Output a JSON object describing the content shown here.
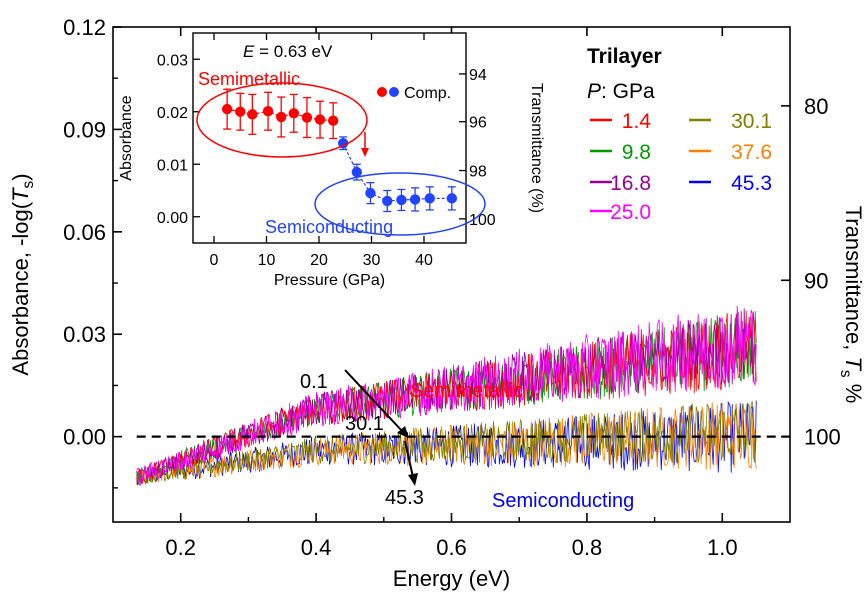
{
  "chart_data": [
    {
      "type": "line",
      "xlabel": "Energy (eV)",
      "ylabel_parts": [
        "Absorbance, -log(",
        "T",
        "s",
        ")"
      ],
      "y2label_parts": [
        "Transmittance, ",
        "T",
        "s",
        " %"
      ],
      "xlim": [
        0.1,
        1.1
      ],
      "ylim": [
        -0.025,
        0.12
      ],
      "xticks": [
        "0.2",
        "0.4",
        "0.6",
        "0.8",
        "1.0"
      ],
      "yticks": [
        "0.00",
        "0.03",
        "0.06",
        "0.09",
        "0.12"
      ],
      "y2ticks": [
        {
          "label": "80",
          "at": 0.0969
        },
        {
          "label": "90",
          "at": 0.0458
        },
        {
          "label": "100",
          "at": 0.0
        }
      ],
      "baseline": 0.0,
      "legend_title": "Trilayer",
      "legend_unit_label": "P: GPa",
      "series": [
        {
          "name": "1.4",
          "color": "#ff0000",
          "start": 0.008,
          "end": 0.026,
          "amp": 0.024
        },
        {
          "name": "9.8",
          "color": "#009900",
          "start": 0.008,
          "end": 0.026,
          "amp": 0.023
        },
        {
          "name": "16.8",
          "color": "#990099",
          "start": 0.008,
          "end": 0.027,
          "amp": 0.024
        },
        {
          "name": "25.0",
          "color": "#ff00ff",
          "start": 0.008,
          "end": 0.028,
          "amp": 0.026
        },
        {
          "name": "30.1",
          "color": "#808000",
          "start": -0.004,
          "end": 0.002,
          "amp": 0.02
        },
        {
          "name": "37.6",
          "color": "#ff8000",
          "start": -0.004,
          "end": 0.001,
          "amp": 0.022
        },
        {
          "name": "45.3",
          "color": "#0000ff",
          "start": -0.004,
          "end": 0.0,
          "amp": 0.022
        }
      ],
      "annotations": {
        "semimetallic": "Semimetallic",
        "semiconducting": "Semiconducting",
        "p_low": "0.1",
        "p_mid": "30.1",
        "p_high": "45.3"
      }
    },
    {
      "type": "scatter",
      "title_parts": [
        "E",
        " = 0.63 eV"
      ],
      "xlabel": "Pressure (GPa)",
      "ylabel": "Absorbance",
      "y2label": "Transmittance (%)",
      "xlim": [
        -4,
        48
      ],
      "ylim": [
        -0.005,
        0.035
      ],
      "xticks": [
        "0",
        "10",
        "20",
        "30",
        "40"
      ],
      "yticks": [
        "0.00",
        "0.01",
        "0.02",
        "0.03"
      ],
      "y2ticks": [
        {
          "label": "94",
          "at": 0.0272
        },
        {
          "label": "96",
          "at": 0.0181
        },
        {
          "label": "98",
          "at": 0.0088
        },
        {
          "label": "100",
          "at": -0.0004
        }
      ],
      "legend": "Comp.",
      "labels": {
        "semimetallic": "Semimetallic",
        "semiconducting": "Semiconducting"
      },
      "red_points": [
        {
          "x": 2.5,
          "y": 0.0205,
          "err": 0.0038
        },
        {
          "x": 5.0,
          "y": 0.02,
          "err": 0.0035
        },
        {
          "x": 7.3,
          "y": 0.0195,
          "err": 0.0038
        },
        {
          "x": 10.3,
          "y": 0.0201,
          "err": 0.0036
        },
        {
          "x": 12.8,
          "y": 0.019,
          "err": 0.0038
        },
        {
          "x": 15.2,
          "y": 0.0197,
          "err": 0.0036
        },
        {
          "x": 17.7,
          "y": 0.0189,
          "err": 0.0038
        },
        {
          "x": 20.2,
          "y": 0.0185,
          "err": 0.0035
        },
        {
          "x": 22.7,
          "y": 0.0183,
          "err": 0.0034
        }
      ],
      "blue_points": [
        {
          "x": 24.6,
          "y": 0.014,
          "err": 0.0012
        },
        {
          "x": 27.2,
          "y": 0.0085,
          "err": 0.0015
        },
        {
          "x": 29.8,
          "y": 0.0045,
          "err": 0.002
        },
        {
          "x": 33.0,
          "y": 0.003,
          "err": 0.002
        },
        {
          "x": 35.7,
          "y": 0.0032,
          "err": 0.002
        },
        {
          "x": 38.3,
          "y": 0.0033,
          "err": 0.0022
        },
        {
          "x": 41.1,
          "y": 0.0035,
          "err": 0.0022
        },
        {
          "x": 45.3,
          "y": 0.0035,
          "err": 0.0022
        }
      ]
    }
  ]
}
